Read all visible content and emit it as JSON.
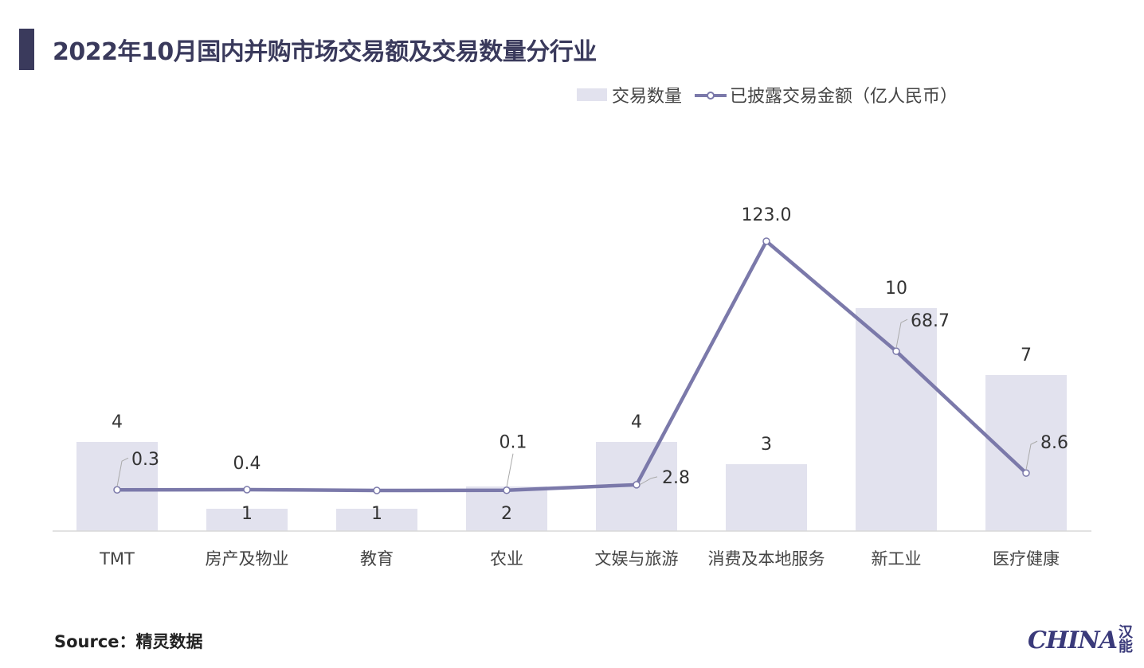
{
  "title": "2022年10月国内并购市场交易额及交易数量分行业",
  "legend": {
    "bar_label": "交易数量",
    "line_label": "已披露交易金额（亿人民币）"
  },
  "source": "Source：精灵数据",
  "logo": {
    "text": "HINA",
    "mark": "汉能",
    "brand_color": "#3a3a7a"
  },
  "colors": {
    "bar": "#e2e2ee",
    "line": "#7b79aa",
    "title": "#3a3a5c"
  },
  "chart_data": {
    "type": "bar",
    "categories": [
      "TMT",
      "房产及物业",
      "教育",
      "农业",
      "文娱与旅游",
      "消费及本地服务",
      "新工业",
      "医疗健康"
    ],
    "series": [
      {
        "name": "交易数量",
        "type": "bar",
        "values": [
          4,
          1,
          1,
          2,
          4,
          3,
          10,
          7
        ],
        "labels": [
          "4",
          "1",
          "1",
          "2",
          "4",
          "3",
          "10",
          "7"
        ]
      },
      {
        "name": "已披露交易金额（亿人民币）",
        "type": "line",
        "values": [
          0.3,
          0.4,
          0.0,
          0.1,
          2.8,
          123.0,
          68.7,
          8.6
        ],
        "labels": [
          "0.3",
          "0.4",
          "",
          "0.1",
          "2.8",
          "123.0",
          "68.7",
          "8.6"
        ]
      }
    ],
    "legend_position": "top-right",
    "grid": false
  }
}
